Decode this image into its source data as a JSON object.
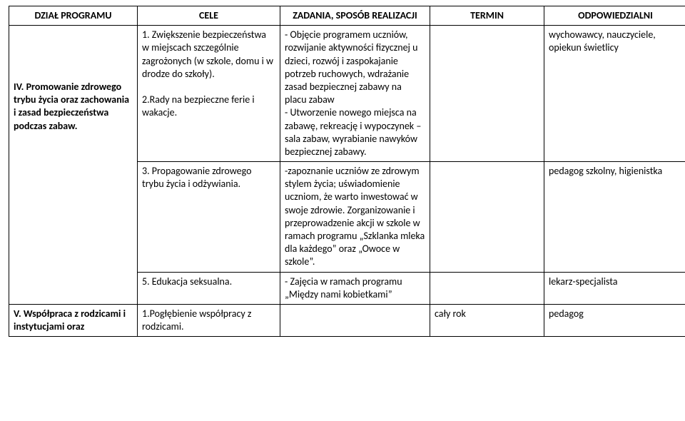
{
  "headers": {
    "c1": "DZIAŁ PROGRAMU",
    "c2": "CELE",
    "c3": "ZADANIA, SPOSÓB REALIZACJI",
    "c4": "TERMIN",
    "c5": "ODPOWIEDZIALNI"
  },
  "rows": [
    {
      "dzial": "IV. Promowanie zdrowego trybu życia oraz zachowania i zasad bezpieczeństwa podczas zabaw.",
      "cele": "1. Zwiększenie bezpieczeństwa w miejscach szczególnie zagrożonych (w szkole, domu i w drodze do szkoły).\n\n2.Rady na bezpieczne ferie i wakacje.",
      "zadania": "- Objęcie programem uczniów, rozwijanie aktywności fizycznej u dzieci, rozwój i zaspokajanie potrzeb ruchowych, wdrażanie zasad bezpiecznej zabawy na placu zabaw\n- Utworzenie nowego miejsca na zabawę, rekreację i wypoczynek – sala zabaw, wyrabianie nawyków bezpiecznej zabawy.",
      "termin": "",
      "odp": "wychowawcy, nauczyciele, opiekun świetlicy"
    },
    {
      "dzial": "",
      "cele": "3. Propagowanie zdrowego trybu życia i odżywiania.",
      "zadania": "-zapoznanie uczniów ze zdrowym stylem życia; uświadomienie uczniom, że warto inwestować w swoje zdrowie. Zorganizowanie i przeprowadzenie akcji w szkole w ramach programu „Szklanka mleka dla każdego” oraz „Owoce w szkole”.",
      "termin": "",
      "odp": "pedagog szkolny, higienistka"
    },
    {
      "dzial": "",
      "cele": "5. Edukacja seksualna.",
      "zadania": "- Zajęcia w ramach programu „Między nami kobietkami”",
      "termin": "",
      "odp": "lekarz-specjalista"
    },
    {
      "dzial": "V. Współpraca z rodzicami i instytucjami oraz",
      "cele": "1.Pogłębienie współpracy z rodzicami.",
      "zadania": "",
      "termin": "cały rok",
      "odp": "pedagog"
    }
  ],
  "style": {
    "font_family": "Calibri, Arial, sans-serif",
    "font_size_pt": 11,
    "border_color": "#000000",
    "background_color": "#ffffff",
    "text_color": "#000000"
  }
}
